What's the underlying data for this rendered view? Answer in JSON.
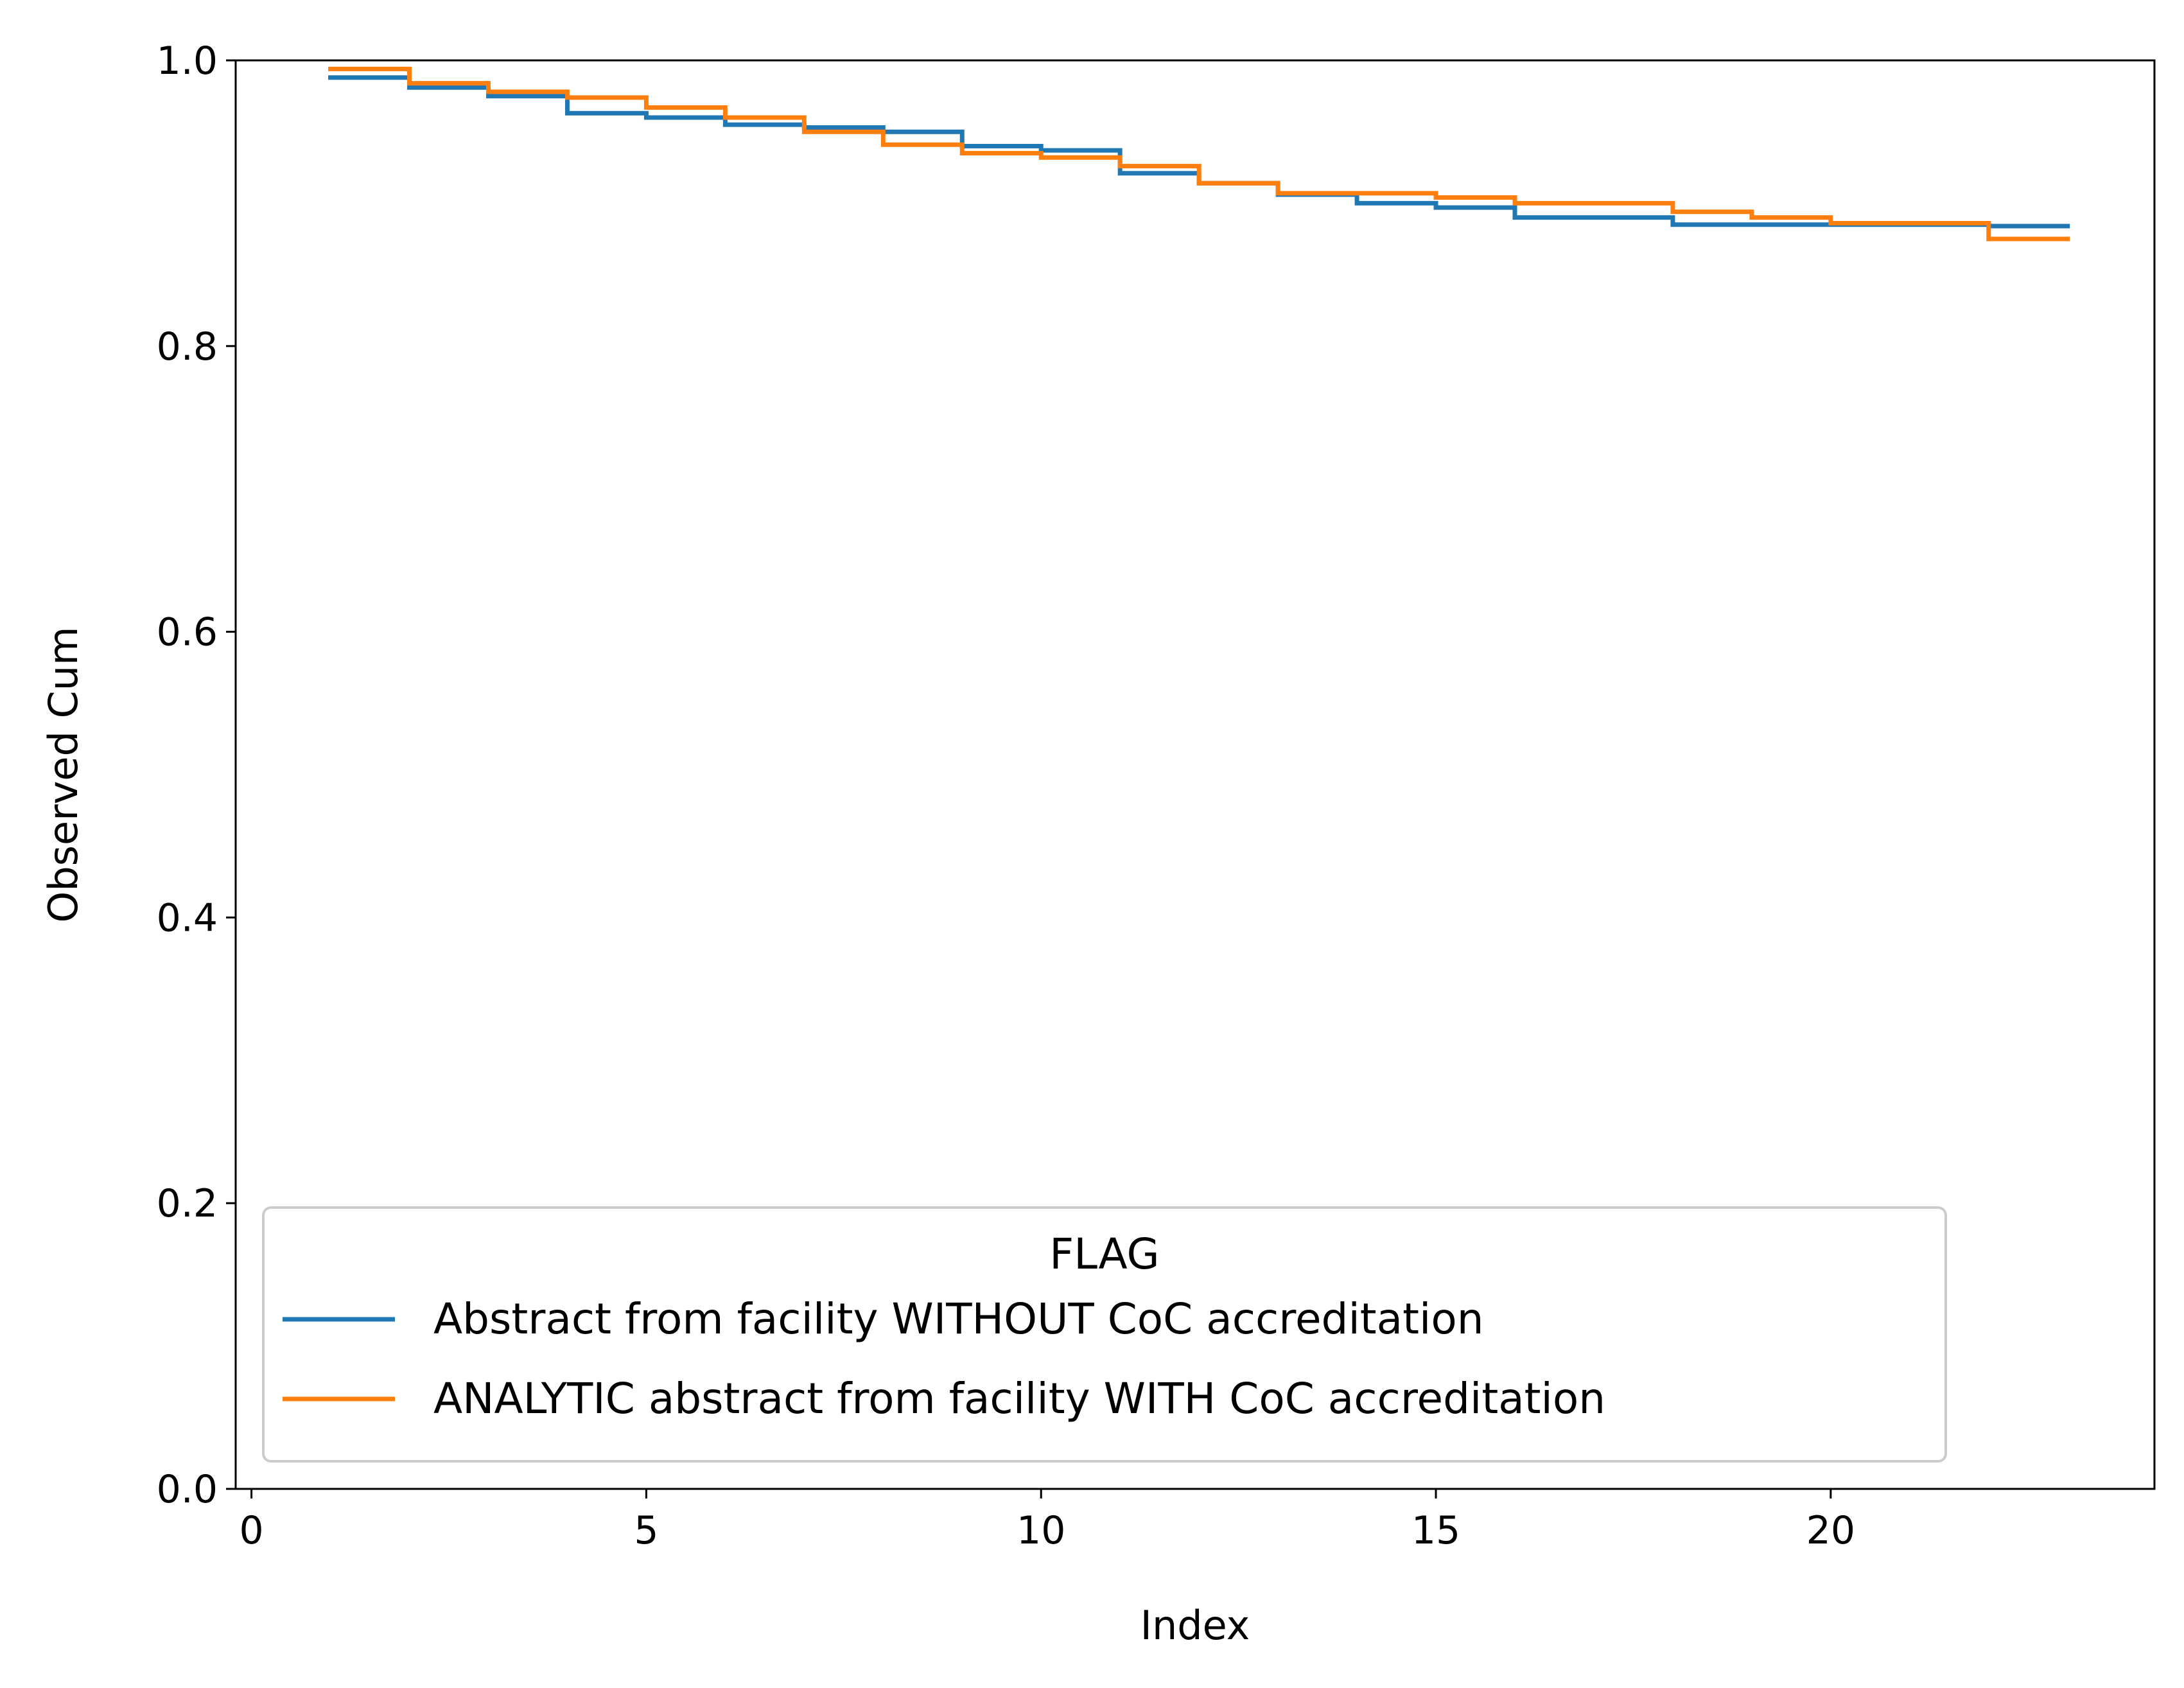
{
  "chart_data": {
    "type": "line",
    "step": "post",
    "title": "",
    "xlabel": "Index",
    "ylabel": "Observed Cum",
    "xlim": [
      -0.2,
      24.1
    ],
    "ylim": [
      0.0,
      1.0
    ],
    "xticks": [
      0,
      5,
      10,
      15,
      20
    ],
    "yticks": [
      0.0,
      0.2,
      0.4,
      0.6,
      0.8,
      1.0
    ],
    "xtick_labels": [
      "0",
      "5",
      "10",
      "15",
      "20"
    ],
    "ytick_labels": [
      "0.0",
      "0.2",
      "0.4",
      "0.6",
      "0.8",
      "1.0"
    ],
    "grid": false,
    "legend": {
      "title": "FLAG",
      "position": "lower-left"
    },
    "x": [
      1,
      2,
      3,
      4,
      5,
      6,
      7,
      8,
      9,
      10,
      11,
      12,
      13,
      14,
      15,
      16,
      17,
      18,
      19,
      20,
      21,
      22,
      23
    ],
    "series": [
      {
        "name": "Abstract from facility WITHOUT CoC accreditation",
        "color": "#1f77b4",
        "values": [
          0.988,
          0.981,
          0.975,
          0.963,
          0.96,
          0.955,
          0.953,
          0.95,
          0.94,
          0.937,
          0.921,
          0.914,
          0.906,
          0.9,
          0.897,
          0.89,
          0.89,
          0.885,
          0.885,
          0.885,
          0.885,
          0.884,
          0.884
        ]
      },
      {
        "name": "ANALYTIC abstract from facility WITH CoC accreditation",
        "color": "#ff7f0e",
        "values": [
          0.994,
          0.984,
          0.978,
          0.974,
          0.967,
          0.96,
          0.95,
          0.941,
          0.935,
          0.932,
          0.926,
          0.914,
          0.907,
          0.907,
          0.904,
          0.9,
          0.9,
          0.894,
          0.89,
          0.886,
          0.886,
          0.875,
          0.875
        ]
      }
    ]
  }
}
